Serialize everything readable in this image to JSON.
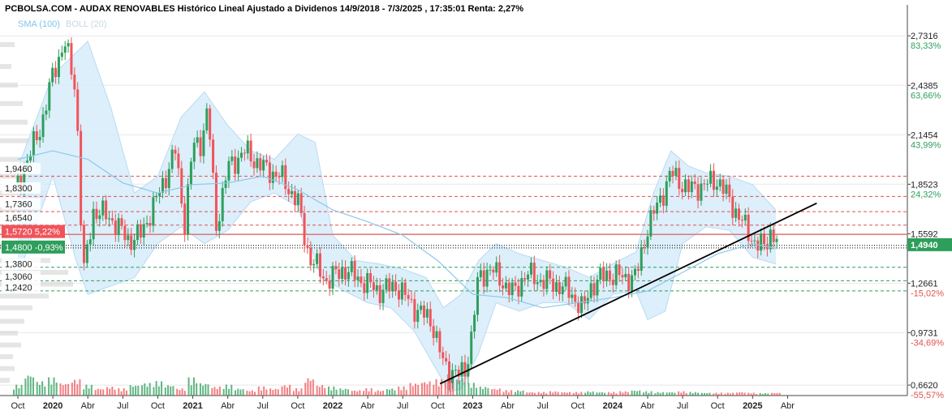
{
  "chart_data": {
    "type": "candlestick",
    "title": "PCBOLSA.COM - AUDAX RENOVABLES Histórico Lineal Ajustado a Dividenos 14/9/2018 - 7/3/2025 , 17:35:01 Renta: 2,27%",
    "legend": {
      "sma": "SMA (100)",
      "boll": "BOLL (20)"
    },
    "y_axis": {
      "min": 0.6,
      "max": 2.8
    },
    "y_ticks": [
      {
        "value": 2.7316,
        "label": "2,7316",
        "pct": "83,33%",
        "pct_color": "#2e9e5b"
      },
      {
        "value": 2.4385,
        "label": "2,4385",
        "pct": "63,66%",
        "pct_color": "#2e9e5b"
      },
      {
        "value": 2.1454,
        "label": "2,1454",
        "pct": "43,99%",
        "pct_color": "#2e9e5b"
      },
      {
        "value": 1.8523,
        "label": "1,8523",
        "pct": "24,32%",
        "pct_color": "#2e9e5b"
      },
      {
        "value": 1.5592,
        "label": "1,5592",
        "pct": "4,64%",
        "pct_color": "#2e9e5b"
      },
      {
        "value": 1.2661,
        "label": "1,2661",
        "pct": "-15,02%",
        "pct_color": "#e0524f"
      },
      {
        "value": 0.9731,
        "label": "0,9731",
        "pct": "-34,69%",
        "pct_color": "#e0524f"
      },
      {
        "value": 0.662,
        "label": "0,6620",
        "pct": "-55,57%",
        "pct_color": "#e0524f"
      }
    ],
    "last_price": {
      "value": 1.494,
      "label": "1,4940"
    },
    "left_labels": [
      {
        "value": 1.946,
        "label": "1,9460"
      },
      {
        "value": 1.83,
        "label": "1,8300"
      },
      {
        "value": 1.736,
        "label": "1,7360"
      },
      {
        "value": 1.654,
        "label": "1,6540"
      },
      {
        "value": 1.38,
        "label": "1,3800"
      },
      {
        "value": 1.306,
        "label": "1,3060"
      },
      {
        "value": 1.242,
        "label": "1,2420"
      }
    ],
    "left_badges": [
      {
        "value": 1.572,
        "label": "1,5720",
        "pct": "5,22%",
        "color": "#f0545a"
      },
      {
        "value": 1.48,
        "label": "1,4800",
        "pct": "-0,93%",
        "color": "#2e9e5b"
      }
    ],
    "support_levels": [
      1.9,
      1.78,
      1.69,
      1.61,
      1.36,
      1.28,
      1.22
    ],
    "red_line": 1.555,
    "dotted_lines": [
      1.49,
      1.475
    ],
    "x_axis": {
      "ticks": [
        {
          "t": 0,
          "label": "Oct",
          "bold": false
        },
        {
          "t": 3,
          "label": "2020",
          "bold": true
        },
        {
          "t": 6,
          "label": "Abr",
          "bold": false
        },
        {
          "t": 9,
          "label": "Jul",
          "bold": false
        },
        {
          "t": 12,
          "label": "Oct",
          "bold": false
        },
        {
          "t": 15,
          "label": "2021",
          "bold": true
        },
        {
          "t": 18,
          "label": "Abr",
          "bold": false
        },
        {
          "t": 21,
          "label": "Jul",
          "bold": false
        },
        {
          "t": 24,
          "label": "Oct",
          "bold": false
        },
        {
          "t": 27,
          "label": "2022",
          "bold": true
        },
        {
          "t": 30,
          "label": "Abr",
          "bold": false
        },
        {
          "t": 33,
          "label": "Jul",
          "bold": false
        },
        {
          "t": 36,
          "label": "Oct",
          "bold": false
        },
        {
          "t": 39,
          "label": "2023",
          "bold": true
        },
        {
          "t": 42,
          "label": "Abr",
          "bold": false
        },
        {
          "t": 45,
          "label": "Jul",
          "bold": false
        },
        {
          "t": 48,
          "label": "Oct",
          "bold": false
        },
        {
          "t": 51,
          "label": "2024",
          "bold": true
        },
        {
          "t": 54,
          "label": "Abr",
          "bold": false
        },
        {
          "t": 57,
          "label": "Jul",
          "bold": false
        },
        {
          "t": 60,
          "label": "Oct",
          "bold": false
        },
        {
          "t": 63,
          "label": "2025",
          "bold": true
        },
        {
          "t": 66,
          "label": "Abr",
          "bold": false
        }
      ]
    },
    "price_path": [
      [
        0,
        1.85
      ],
      [
        2,
        2.2
      ],
      [
        3,
        2.5
      ],
      [
        4,
        2.7
      ],
      [
        5,
        2.4
      ],
      [
        5.6,
        1.3
      ],
      [
        6.5,
        1.7
      ],
      [
        8,
        1.65
      ],
      [
        9.5,
        1.52
      ],
      [
        10.5,
        1.55
      ],
      [
        12,
        1.78
      ],
      [
        13.5,
        2.05
      ],
      [
        14.3,
        1.62
      ],
      [
        15,
        2.08
      ],
      [
        15.7,
        2.1
      ],
      [
        16.3,
        2.3
      ],
      [
        17,
        1.6
      ],
      [
        18,
        1.95
      ],
      [
        19.5,
        2.05
      ],
      [
        21,
        1.95
      ],
      [
        22.5,
        1.9
      ],
      [
        24,
        1.75
      ],
      [
        24.7,
        1.5
      ],
      [
        25,
        1.42
      ],
      [
        26.5,
        1.28
      ],
      [
        28,
        1.35
      ],
      [
        29.5,
        1.28
      ],
      [
        31,
        1.22
      ],
      [
        32.5,
        1.25
      ],
      [
        34,
        1.12
      ],
      [
        35.5,
        1.04
      ],
      [
        36.5,
        0.78
      ],
      [
        37.8,
        0.72
      ],
      [
        38.3,
        0.74
      ],
      [
        38.8,
        0.9
      ],
      [
        39.5,
        1.3
      ],
      [
        40.5,
        1.35
      ],
      [
        41.5,
        1.28
      ],
      [
        42.5,
        1.2
      ],
      [
        43.5,
        1.32
      ],
      [
        45,
        1.28
      ],
      [
        46.5,
        1.25
      ],
      [
        47.5,
        1.2
      ],
      [
        48.5,
        1.1
      ],
      [
        49,
        1.24
      ],
      [
        50.5,
        1.32
      ],
      [
        52,
        1.3
      ],
      [
        53,
        1.3
      ],
      [
        54,
        1.6
      ],
      [
        55,
        1.75
      ],
      [
        56,
        1.92
      ],
      [
        57.5,
        1.82
      ],
      [
        59,
        1.85
      ],
      [
        60,
        1.88
      ],
      [
        61.5,
        1.7
      ],
      [
        62.5,
        1.58
      ],
      [
        63.3,
        1.5
      ],
      [
        64,
        1.48
      ],
      [
        64.6,
        1.58
      ],
      [
        65.2,
        1.494
      ]
    ],
    "sma_path": [
      [
        0,
        2.0
      ],
      [
        3,
        2.05
      ],
      [
        6,
        2.0
      ],
      [
        9,
        1.86
      ],
      [
        12,
        1.8
      ],
      [
        15,
        1.85
      ],
      [
        18,
        1.86
      ],
      [
        21,
        1.9
      ],
      [
        24,
        1.82
      ],
      [
        27,
        1.7
      ],
      [
        30,
        1.63
      ],
      [
        33,
        1.55
      ],
      [
        36,
        1.4
      ],
      [
        39,
        1.2
      ],
      [
        42,
        1.18
      ],
      [
        45,
        1.12
      ],
      [
        48,
        1.15
      ],
      [
        51,
        1.18
      ],
      [
        54,
        1.22
      ],
      [
        57,
        1.33
      ],
      [
        60,
        1.44
      ],
      [
        63,
        1.5
      ],
      [
        65.2,
        1.47
      ]
    ],
    "boll_upper_path": [
      [
        0,
        1.95
      ],
      [
        3,
        2.5
      ],
      [
        6,
        2.7
      ],
      [
        8,
        2.3
      ],
      [
        10,
        1.8
      ],
      [
        12,
        1.9
      ],
      [
        14,
        2.25
      ],
      [
        16,
        2.4
      ],
      [
        18,
        2.2
      ],
      [
        20,
        2.05
      ],
      [
        22,
        2.0
      ],
      [
        24,
        2.15
      ],
      [
        25.5,
        2.1
      ],
      [
        27,
        1.55
      ],
      [
        29,
        1.4
      ],
      [
        31,
        1.38
      ],
      [
        33,
        1.35
      ],
      [
        35,
        1.3
      ],
      [
        36.5,
        1.12
      ],
      [
        38,
        1.2
      ],
      [
        39.5,
        1.4
      ],
      [
        41,
        1.5
      ],
      [
        43,
        1.44
      ],
      [
        45,
        1.4
      ],
      [
        47,
        1.36
      ],
      [
        49,
        1.3
      ],
      [
        51,
        1.38
      ],
      [
        53,
        1.45
      ],
      [
        54.5,
        1.8
      ],
      [
        56,
        2.05
      ],
      [
        57.5,
        1.96
      ],
      [
        59,
        1.92
      ],
      [
        61,
        1.9
      ],
      [
        63,
        1.85
      ],
      [
        65,
        1.7
      ]
    ],
    "boll_lower_path": [
      [
        0,
        1.3
      ],
      [
        3,
        1.9
      ],
      [
        5,
        1.4
      ],
      [
        6,
        1.2
      ],
      [
        8,
        1.25
      ],
      [
        10,
        1.3
      ],
      [
        12,
        1.5
      ],
      [
        14,
        1.6
      ],
      [
        16,
        1.5
      ],
      [
        18,
        1.58
      ],
      [
        20,
        1.75
      ],
      [
        22,
        1.8
      ],
      [
        24,
        1.72
      ],
      [
        26,
        1.3
      ],
      [
        28,
        1.22
      ],
      [
        30,
        1.15
      ],
      [
        32,
        1.12
      ],
      [
        34,
        0.98
      ],
      [
        35.5,
        0.8
      ],
      [
        37,
        0.62
      ],
      [
        38,
        0.64
      ],
      [
        39.5,
        0.85
      ],
      [
        41,
        1.15
      ],
      [
        43,
        1.1
      ],
      [
        45,
        1.15
      ],
      [
        47,
        1.15
      ],
      [
        49,
        1.05
      ],
      [
        51,
        1.2
      ],
      [
        53,
        1.22
      ],
      [
        54,
        1.05
      ],
      [
        55.5,
        1.1
      ],
      [
        57,
        1.5
      ],
      [
        59,
        1.6
      ],
      [
        61,
        1.58
      ],
      [
        63,
        1.42
      ],
      [
        65,
        1.38
      ]
    ],
    "trendline": [
      [
        36.2,
        0.67
      ],
      [
        68.5,
        1.74
      ]
    ],
    "volume": {
      "max": 1,
      "values": [
        0.3,
        0.6,
        0.4,
        0.5,
        0.35,
        0.45,
        0.3,
        0.2,
        0.25,
        0.2,
        0.3,
        0.35,
        0.4,
        0.3,
        0.2,
        0.5,
        0.35,
        0.25,
        0.3,
        0.2,
        0.15,
        0.25,
        0.2,
        0.3,
        0.2,
        0.5,
        0.3,
        0.25,
        0.2,
        0.15,
        0.2,
        0.15,
        0.2,
        0.25,
        0.35,
        0.4,
        0.45,
        0.6,
        0.5,
        0.35,
        0.25,
        0.2,
        0.15,
        0.15,
        0.1,
        0.1,
        0.12,
        0.1,
        0.1,
        0.12,
        0.1,
        0.1,
        0.12,
        0.15,
        0.12,
        0.1,
        0.1,
        0.12,
        0.1,
        0.08,
        0.08,
        0.08,
        0.1,
        0.08,
        0.07,
        0.08
      ]
    },
    "volume_profile": [
      {
        "value": 2.68,
        "w": 18
      },
      {
        "value": 2.55,
        "w": 14
      },
      {
        "value": 2.44,
        "w": 22
      },
      {
        "value": 2.33,
        "w": 28
      },
      {
        "value": 2.22,
        "w": 34
      },
      {
        "value": 2.11,
        "w": 40
      },
      {
        "value": 2.0,
        "w": 46
      },
      {
        "value": 1.9,
        "w": 52
      },
      {
        "value": 1.8,
        "w": 58
      },
      {
        "value": 1.7,
        "w": 48
      },
      {
        "value": 1.6,
        "w": 40
      },
      {
        "value": 1.48,
        "w": 70
      },
      {
        "value": 1.4,
        "w": 62
      },
      {
        "value": 1.33,
        "w": 84
      },
      {
        "value": 1.26,
        "w": 90
      },
      {
        "value": 1.19,
        "w": 60
      },
      {
        "value": 1.12,
        "w": 40
      },
      {
        "value": 1.04,
        "w": 30
      },
      {
        "value": 0.97,
        "w": 22
      },
      {
        "value": 0.9,
        "w": 26
      },
      {
        "value": 0.83,
        "w": 16
      },
      {
        "value": 0.76,
        "w": 18
      },
      {
        "value": 0.69,
        "w": 12
      }
    ],
    "colors": {
      "up": "#2e9e5b",
      "down": "#f0545a",
      "sma": "#8cc8ea",
      "boll_fill": "#d6ecfa",
      "boll_stroke": "#b9dbf2",
      "support": "#e0524f",
      "support_alt": "#2e9e5b",
      "trend": "#000000",
      "grid": "#e8e8e8",
      "last_price_bg": "#2e9e5b"
    }
  }
}
